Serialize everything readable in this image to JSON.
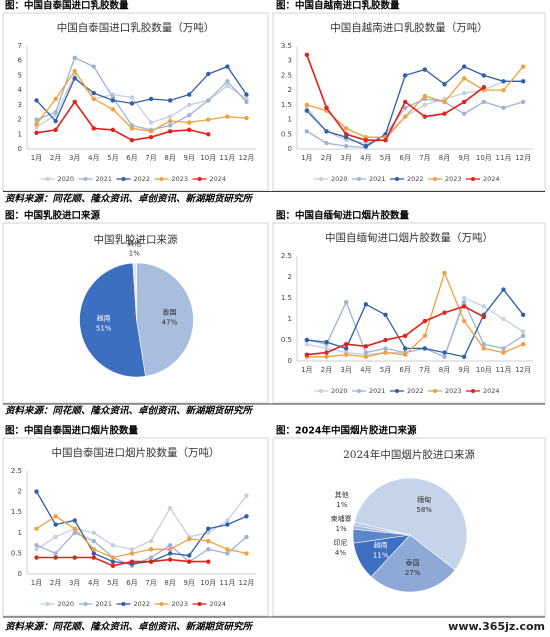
{
  "headers": [
    "图：中国自泰国进口乳胶数量",
    "图：中国自越南进口乳胶数量",
    "图：中国乳胶进口来源",
    "图：中国自缅甸进口烟片胶数量",
    "图：中国自泰国进口烟片胶数量",
    "图：2024年中国烟片胶进口来源"
  ],
  "sources": [
    "资料来源：同花顺、隆众资讯、卓创资讯、新湖期货研究所",
    "资料来源：同花顺、隆众资讯、卓创资讯、新湖期货研究所",
    "资料来源：同花顺、隆众资讯、卓创资讯、新湖期货研究所"
  ],
  "watermark": "www.365jz.com",
  "chart_data": [
    {
      "type": "line",
      "title": "中国自泰国进口乳胶数量（万吨）",
      "categories": [
        "1月",
        "2月",
        "3月",
        "4月",
        "5月",
        "6月",
        "7月",
        "8月",
        "9月",
        "10月",
        "11月",
        "12月"
      ],
      "ylim": [
        0,
        7
      ],
      "yticks": [
        0,
        1,
        2,
        3,
        4,
        5,
        6,
        7
      ],
      "legend": "bottom",
      "series": [
        {
          "name": "2020",
          "color": "#c5cfe0",
          "values": [
            1.5,
            2.3,
            5.0,
            3.4,
            3.7,
            3.5,
            1.8,
            2.2,
            3.0,
            3.3,
            4.3,
            3.4
          ]
        },
        {
          "name": "2021",
          "color": "#9fb3d6",
          "values": [
            2.0,
            2.5,
            6.2,
            5.6,
            3.5,
            1.6,
            1.3,
            1.6,
            2.3,
            3.3,
            4.6,
            3.2
          ]
        },
        {
          "name": "2022",
          "color": "#2f5fa6",
          "values": [
            3.3,
            1.9,
            4.8,
            3.8,
            3.3,
            3.1,
            3.4,
            3.3,
            3.7,
            5.1,
            5.6,
            3.7
          ]
        },
        {
          "name": "2023",
          "color": "#f2a03d",
          "values": [
            1.7,
            3.4,
            5.3,
            3.4,
            2.7,
            1.4,
            1.2,
            1.9,
            1.8,
            2.0,
            2.2,
            2.1
          ]
        },
        {
          "name": "2024",
          "color": "#e3201c",
          "values": [
            1.1,
            1.3,
            3.2,
            1.4,
            1.3,
            0.6,
            0.8,
            1.2,
            1.3,
            1.0,
            null,
            null
          ]
        }
      ]
    },
    {
      "type": "line",
      "title": "中国自越南进口乳胶数量（万吨）",
      "categories": [
        "1月",
        "2月",
        "3月",
        "4月",
        "5月",
        "6月",
        "7月",
        "8月",
        "9月",
        "10月",
        "11月",
        "12月"
      ],
      "ylim": [
        0,
        3.5
      ],
      "yticks": [
        0,
        0.5,
        1,
        1.5,
        2,
        2.5,
        3,
        3.5
      ],
      "legend": "bottom",
      "series": [
        {
          "name": "2020",
          "color": "#c5cfe0",
          "values": [
            1.4,
            0.6,
            0.3,
            0.2,
            0.3,
            1.1,
            1.5,
            1.7,
            1.9,
            2.0,
            2.3,
            2.3
          ]
        },
        {
          "name": "2021",
          "color": "#9fb3d6",
          "values": [
            0.6,
            0.2,
            0.1,
            0.05,
            0.5,
            1.4,
            1.7,
            1.6,
            1.2,
            1.6,
            1.4,
            1.6
          ]
        },
        {
          "name": "2022",
          "color": "#2f5fa6",
          "values": [
            1.3,
            0.6,
            0.4,
            0.1,
            0.5,
            2.5,
            2.7,
            2.2,
            2.8,
            2.5,
            2.3,
            2.3
          ]
        },
        {
          "name": "2023",
          "color": "#f2a03d",
          "values": [
            1.5,
            1.3,
            0.7,
            0.4,
            0.4,
            1.1,
            1.8,
            1.6,
            2.4,
            2.0,
            2.0,
            2.8
          ]
        },
        {
          "name": "2024",
          "color": "#e3201c",
          "values": [
            3.2,
            1.4,
            0.5,
            0.3,
            0.3,
            1.6,
            1.1,
            1.2,
            1.6,
            2.1,
            null,
            null
          ]
        }
      ]
    },
    {
      "type": "pie",
      "title": "中国乳胶进口来源",
      "categories": [
        "泰国",
        "越南",
        "其他"
      ],
      "values": [
        47,
        51,
        1
      ],
      "value_labels": [
        "47%",
        "51%",
        "1%"
      ],
      "colors": [
        "#a9bddf",
        "#3c6fbf",
        "#dfe6f1"
      ]
    },
    {
      "type": "line",
      "title": "中国自缅甸进口烟片胶数量（万吨）",
      "categories": [
        "1月",
        "2月",
        "3月",
        "4月",
        "5月",
        "6月",
        "7月",
        "8月",
        "9月",
        "10月",
        "11月",
        "12月"
      ],
      "ylim": [
        0,
        2.5
      ],
      "yticks": [
        0,
        0.5,
        1,
        1.5,
        2,
        2.5
      ],
      "legend": "bottom",
      "series": [
        {
          "name": "2020",
          "color": "#c5cfe0",
          "values": [
            0.4,
            0.3,
            0.2,
            0.15,
            0.2,
            0.2,
            0.3,
            0.1,
            1.5,
            1.3,
            1.0,
            0.7
          ]
        },
        {
          "name": "2021",
          "color": "#9fb3d6",
          "values": [
            0.5,
            0.4,
            1.4,
            0.2,
            0.3,
            0.2,
            0.3,
            0.1,
            1.4,
            0.4,
            0.3,
            0.6
          ]
        },
        {
          "name": "2022",
          "color": "#2f5fa6",
          "values": [
            0.5,
            0.45,
            0.3,
            1.35,
            1.1,
            0.3,
            0.3,
            0.2,
            0.1,
            1.1,
            1.7,
            1.1
          ]
        },
        {
          "name": "2023",
          "color": "#f2a03d",
          "values": [
            0.1,
            0.1,
            0.15,
            0.1,
            0.2,
            0.15,
            0.6,
            2.1,
            0.95,
            0.3,
            0.2,
            0.4
          ]
        },
        {
          "name": "2024",
          "color": "#e3201c",
          "values": [
            0.15,
            0.2,
            0.4,
            0.35,
            0.5,
            0.6,
            0.95,
            1.15,
            1.3,
            1.05,
            null,
            null
          ]
        }
      ]
    },
    {
      "type": "line",
      "title": "中国自泰国进口烟片胶数量（万吨）",
      "categories": [
        "1月",
        "2月",
        "3月",
        "4月",
        "5月",
        "6月",
        "7月",
        "8月",
        "9月",
        "10月",
        "11月",
        "12月"
      ],
      "ylim": [
        0,
        2.5
      ],
      "yticks": [
        0,
        0.5,
        1,
        1.5,
        2,
        2.5
      ],
      "legend": "bottom",
      "series": [
        {
          "name": "2020",
          "color": "#c5cfe0",
          "values": [
            0.6,
            0.9,
            1.1,
            1.0,
            0.7,
            0.6,
            0.8,
            1.6,
            0.9,
            1.0,
            1.3,
            1.9
          ]
        },
        {
          "name": "2021",
          "color": "#9fb3d6",
          "values": [
            0.7,
            0.5,
            1.0,
            0.8,
            0.4,
            0.2,
            0.4,
            0.7,
            0.3,
            0.6,
            0.5,
            0.9
          ]
        },
        {
          "name": "2022",
          "color": "#2f5fa6",
          "values": [
            2.0,
            1.2,
            1.3,
            0.5,
            0.3,
            0.25,
            0.3,
            0.5,
            0.45,
            1.1,
            1.2,
            1.4
          ]
        },
        {
          "name": "2023",
          "color": "#f2a03d",
          "values": [
            1.1,
            1.4,
            1.1,
            0.6,
            0.4,
            0.5,
            0.6,
            0.6,
            0.85,
            0.8,
            0.6,
            0.5
          ]
        },
        {
          "name": "2024",
          "color": "#e3201c",
          "values": [
            0.4,
            0.4,
            0.4,
            0.4,
            0.2,
            0.3,
            0.3,
            0.35,
            0.3,
            0.3,
            null,
            null
          ]
        }
      ]
    },
    {
      "type": "pie",
      "title": "2024年中国烟片胶进口来源",
      "categories": [
        "缅甸",
        "泰国",
        "越南",
        "印尼",
        "柬埔寨",
        "其他"
      ],
      "values": [
        58,
        27,
        11,
        4,
        1,
        1
      ],
      "value_labels": [
        "58%",
        "27%",
        "11%",
        "4%",
        "1%",
        "1%"
      ],
      "colors": [
        "#c6d4ea",
        "#8fa9d6",
        "#3e6fc0",
        "#5b86cc",
        "#9db4dc",
        "#b8c8e4"
      ]
    }
  ]
}
